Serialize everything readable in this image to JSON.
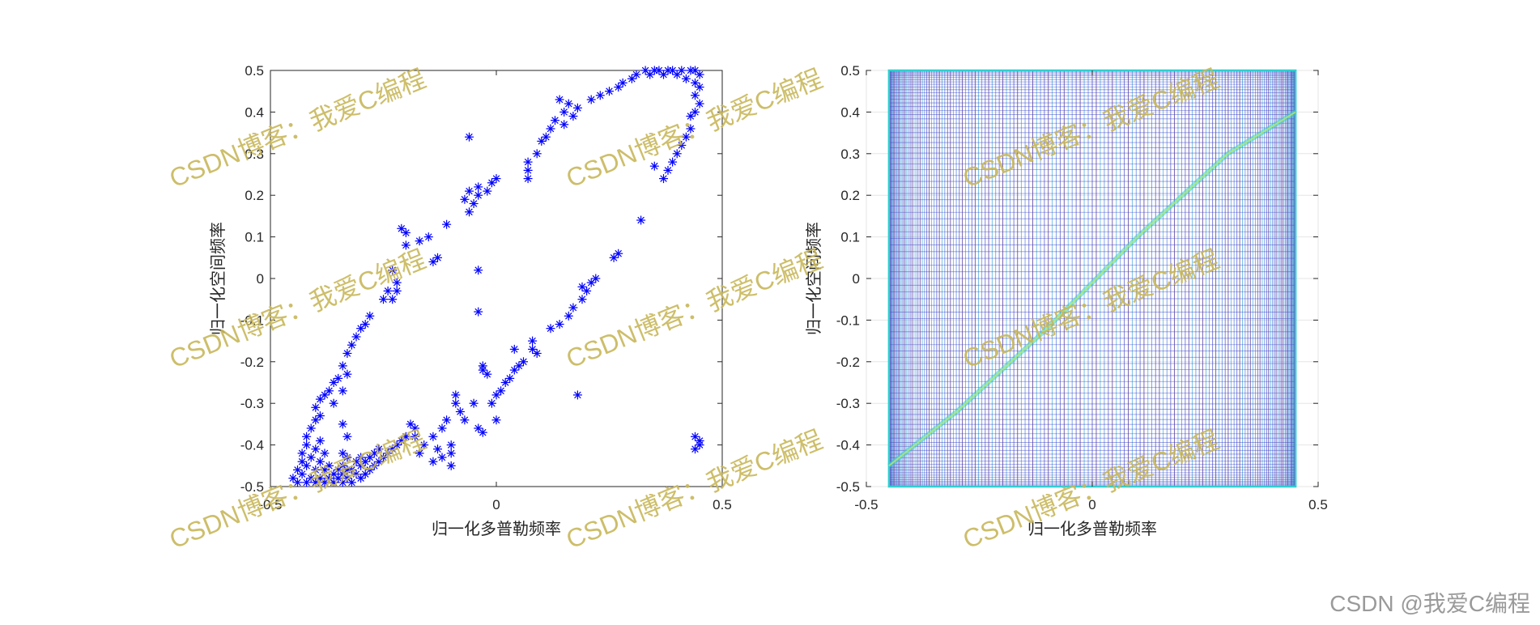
{
  "chart_data": [
    {
      "type": "scatter",
      "marker": "asterisk",
      "color": "#0000ff",
      "xlabel": "归一化多普勒频率",
      "ylabel": "归一化空间频率",
      "xlim": [
        -0.5,
        0.5
      ],
      "ylim": [
        -0.5,
        0.5
      ],
      "xticks": [
        "-0.5",
        "0",
        "0.5"
      ],
      "yticks": [
        "-0.5",
        "-0.4",
        "-0.3",
        "-0.2",
        "-0.1",
        "0",
        "0.1",
        "0.2",
        "0.3",
        "0.4",
        "0.5"
      ],
      "grid": false,
      "points": [
        [
          -0.45,
          -0.48
        ],
        [
          -0.44,
          -0.46
        ],
        [
          -0.44,
          -0.49
        ],
        [
          -0.43,
          -0.47
        ],
        [
          -0.43,
          -0.44
        ],
        [
          -0.43,
          -0.42
        ],
        [
          -0.42,
          -0.49
        ],
        [
          -0.42,
          -0.45
        ],
        [
          -0.42,
          -0.4
        ],
        [
          -0.42,
          -0.38
        ],
        [
          -0.41,
          -0.48
        ],
        [
          -0.41,
          -0.43
        ],
        [
          -0.41,
          -0.36
        ],
        [
          -0.4,
          -0.49
        ],
        [
          -0.4,
          -0.46
        ],
        [
          -0.4,
          -0.41
        ],
        [
          -0.4,
          -0.34
        ],
        [
          -0.4,
          -0.31
        ],
        [
          -0.39,
          -0.48
        ],
        [
          -0.39,
          -0.44
        ],
        [
          -0.39,
          -0.39
        ],
        [
          -0.39,
          -0.33
        ],
        [
          -0.39,
          -0.29
        ],
        [
          -0.38,
          -0.49
        ],
        [
          -0.38,
          -0.46
        ],
        [
          -0.38,
          -0.42
        ],
        [
          -0.38,
          -0.28
        ],
        [
          -0.37,
          -0.48
        ],
        [
          -0.37,
          -0.45
        ],
        [
          -0.37,
          -0.27
        ],
        [
          -0.36,
          -0.49
        ],
        [
          -0.36,
          -0.47
        ],
        [
          -0.36,
          -0.3
        ],
        [
          -0.36,
          -0.25
        ],
        [
          -0.35,
          -0.48
        ],
        [
          -0.35,
          -0.46
        ],
        [
          -0.35,
          -0.24
        ],
        [
          -0.34,
          -0.49
        ],
        [
          -0.34,
          -0.47
        ],
        [
          -0.34,
          -0.45
        ],
        [
          -0.34,
          -0.42
        ],
        [
          -0.34,
          -0.35
        ],
        [
          -0.34,
          -0.27
        ],
        [
          -0.34,
          -0.21
        ],
        [
          -0.33,
          -0.48
        ],
        [
          -0.33,
          -0.46
        ],
        [
          -0.33,
          -0.43
        ],
        [
          -0.33,
          -0.38
        ],
        [
          -0.33,
          -0.23
        ],
        [
          -0.33,
          -0.18
        ],
        [
          -0.32,
          -0.49
        ],
        [
          -0.32,
          -0.46
        ],
        [
          -0.32,
          -0.16
        ],
        [
          -0.31,
          -0.47
        ],
        [
          -0.31,
          -0.44
        ],
        [
          -0.31,
          -0.14
        ],
        [
          -0.3,
          -0.48
        ],
        [
          -0.3,
          -0.45
        ],
        [
          -0.3,
          -0.43
        ],
        [
          -0.3,
          -0.12
        ],
        [
          -0.29,
          -0.47
        ],
        [
          -0.29,
          -0.44
        ],
        [
          -0.29,
          -0.11
        ],
        [
          -0.28,
          -0.46
        ],
        [
          -0.28,
          -0.43
        ],
        [
          -0.28,
          -0.09
        ],
        [
          -0.27,
          -0.45
        ],
        [
          -0.27,
          -0.42
        ],
        [
          -0.26,
          -0.44
        ],
        [
          -0.26,
          -0.41
        ],
        [
          -0.25,
          -0.05
        ],
        [
          -0.25,
          -0.43
        ],
        [
          -0.24,
          -0.42
        ],
        [
          -0.24,
          -0.03
        ],
        [
          -0.23,
          -0.41
        ],
        [
          -0.23,
          -0.05
        ],
        [
          -0.23,
          0.02
        ],
        [
          -0.22,
          -0.4
        ],
        [
          -0.22,
          -0.01
        ],
        [
          -0.22,
          -0.03
        ],
        [
          -0.21,
          0.12
        ],
        [
          -0.21,
          -0.39
        ],
        [
          -0.2,
          0.11
        ],
        [
          -0.2,
          -0.38
        ],
        [
          -0.2,
          0.08
        ],
        [
          -0.19,
          -0.35
        ],
        [
          -0.18,
          -0.38
        ],
        [
          -0.18,
          -0.36
        ],
        [
          -0.17,
          0.09
        ],
        [
          -0.17,
          -0.42
        ],
        [
          -0.16,
          -0.4
        ],
        [
          -0.15,
          0.1
        ],
        [
          -0.14,
          0.04
        ],
        [
          -0.14,
          -0.38
        ],
        [
          -0.14,
          -0.44
        ],
        [
          -0.13,
          0.05
        ],
        [
          -0.13,
          -0.41
        ],
        [
          -0.12,
          -0.43
        ],
        [
          -0.12,
          -0.36
        ],
        [
          -0.11,
          0.13
        ],
        [
          -0.11,
          -0.34
        ],
        [
          -0.1,
          -0.4
        ],
        [
          -0.1,
          -0.45
        ],
        [
          -0.1,
          -0.42
        ],
        [
          -0.09,
          -0.28
        ],
        [
          -0.09,
          -0.3
        ],
        [
          -0.08,
          -0.32
        ],
        [
          -0.07,
          0.19
        ],
        [
          -0.07,
          -0.34
        ],
        [
          -0.06,
          0.21
        ],
        [
          -0.06,
          0.16
        ],
        [
          -0.06,
          0.34
        ],
        [
          -0.05,
          0.18
        ],
        [
          -0.05,
          -0.3
        ],
        [
          -0.04,
          0.2
        ],
        [
          -0.04,
          0.02
        ],
        [
          -0.04,
          0.22
        ],
        [
          -0.04,
          -0.36
        ],
        [
          -0.04,
          -0.08
        ],
        [
          -0.03,
          -0.22
        ],
        [
          -0.03,
          -0.21
        ],
        [
          -0.03,
          -0.37
        ],
        [
          -0.02,
          0.21
        ],
        [
          -0.02,
          -0.23
        ],
        [
          -0.01,
          0.23
        ],
        [
          -0.01,
          -0.3
        ],
        [
          0.0,
          0.24
        ],
        [
          0.0,
          -0.28
        ],
        [
          0.0,
          -0.34
        ],
        [
          0.01,
          -0.27
        ],
        [
          0.02,
          -0.25
        ],
        [
          0.03,
          -0.24
        ],
        [
          0.04,
          -0.22
        ],
        [
          0.04,
          -0.17
        ],
        [
          0.05,
          -0.21
        ],
        [
          0.06,
          -0.2
        ],
        [
          0.07,
          0.26
        ],
        [
          0.07,
          0.28
        ],
        [
          0.07,
          0.24
        ],
        [
          0.08,
          -0.17
        ],
        [
          0.08,
          -0.15
        ],
        [
          0.09,
          0.3
        ],
        [
          0.09,
          -0.18
        ],
        [
          0.1,
          0.33
        ],
        [
          0.11,
          0.34
        ],
        [
          0.12,
          -0.12
        ],
        [
          0.12,
          0.36
        ],
        [
          0.13,
          0.38
        ],
        [
          0.14,
          -0.11
        ],
        [
          0.14,
          0.43
        ],
        [
          0.15,
          0.37
        ],
        [
          0.15,
          0.4
        ],
        [
          0.16,
          -0.09
        ],
        [
          0.16,
          0.42
        ],
        [
          0.17,
          0.39
        ],
        [
          0.17,
          -0.07
        ],
        [
          0.18,
          0.41
        ],
        [
          0.18,
          -0.28
        ],
        [
          0.19,
          -0.05
        ],
        [
          0.19,
          -0.02
        ],
        [
          0.2,
          -0.03
        ],
        [
          0.21,
          -0.01
        ],
        [
          0.21,
          0.43
        ],
        [
          0.22,
          0.0
        ],
        [
          0.23,
          0.44
        ],
        [
          0.25,
          0.45
        ],
        [
          0.26,
          0.05
        ],
        [
          0.27,
          0.06
        ],
        [
          0.27,
          0.46
        ],
        [
          0.28,
          0.47
        ],
        [
          0.3,
          0.48
        ],
        [
          0.31,
          0.49
        ],
        [
          0.32,
          0.14
        ],
        [
          0.33,
          0.5
        ],
        [
          0.34,
          0.49
        ],
        [
          0.35,
          0.27
        ],
        [
          0.35,
          0.5
        ],
        [
          0.36,
          0.5
        ],
        [
          0.37,
          0.24
        ],
        [
          0.37,
          0.49
        ],
        [
          0.38,
          0.26
        ],
        [
          0.38,
          0.5
        ],
        [
          0.39,
          0.28
        ],
        [
          0.39,
          0.5
        ],
        [
          0.4,
          0.3
        ],
        [
          0.4,
          0.49
        ],
        [
          0.41,
          0.32
        ],
        [
          0.41,
          0.5
        ],
        [
          0.42,
          0.34
        ],
        [
          0.42,
          0.48
        ],
        [
          0.43,
          0.36
        ],
        [
          0.43,
          0.5
        ],
        [
          0.43,
          0.39
        ],
        [
          0.44,
          0.4
        ],
        [
          0.44,
          0.44
        ],
        [
          0.44,
          0.47
        ],
        [
          0.44,
          0.5
        ],
        [
          0.45,
          0.42
        ],
        [
          0.45,
          0.46
        ],
        [
          0.45,
          0.49
        ],
        [
          0.44,
          -0.38
        ],
        [
          0.45,
          -0.4
        ],
        [
          0.45,
          -0.39
        ],
        [
          0.44,
          -0.41
        ]
      ]
    },
    {
      "type": "heatmap",
      "style": "contour-mesh",
      "xlabel": "",
      "ylabel": "归一化空间频率",
      "xlim": [
        -0.5,
        0.5
      ],
      "ylim": [
        -0.5,
        0.5
      ],
      "xticks": [
        "-0.5",
        "0",
        "0.5"
      ],
      "yticks": [
        "-0.5",
        "-0.4",
        "-0.3",
        "-0.2",
        "-0.1",
        "0",
        "0.1",
        "0.2",
        "0.3",
        "0.4",
        "0.5"
      ],
      "grid": true,
      "data_xlim": [
        -0.45,
        0.45
      ],
      "colors": [
        "#3a1f8f",
        "#3f45c8",
        "#4a7be0",
        "#3aa3dd",
        "#2fcfd0",
        "#b8e86a"
      ],
      "ridge": [
        [
          -0.45,
          -0.45
        ],
        [
          -0.3,
          -0.32
        ],
        [
          -0.1,
          -0.12
        ],
        [
          0.1,
          0.1
        ],
        [
          0.3,
          0.3
        ],
        [
          0.45,
          0.4
        ]
      ]
    }
  ],
  "shared_xlabel": "归一化多普勒频率",
  "watermarks": {
    "text": "CSDN博客：我爱C编程",
    "corner": "CSDN @我爱C编程"
  }
}
